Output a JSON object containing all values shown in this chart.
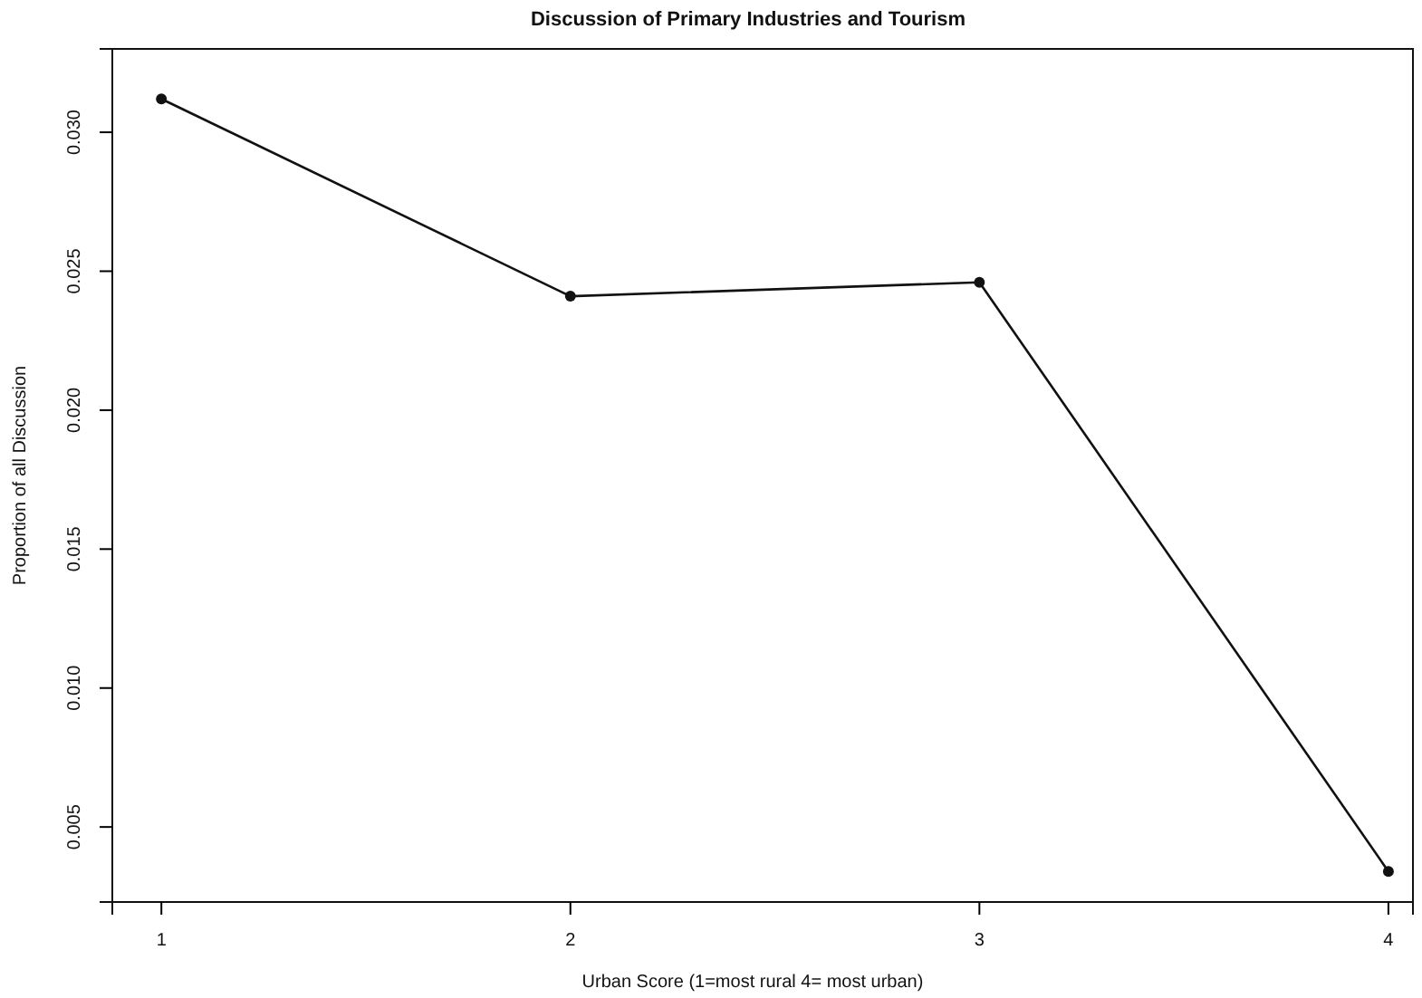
{
  "chart_data": {
    "type": "line",
    "title": "Discussion of Primary Industries and Tourism",
    "xlabel": "Urban Score (1=most rural  4= most urban)",
    "ylabel": "Proportion of all Discussion",
    "x": [
      1,
      2,
      3,
      4
    ],
    "series": [
      {
        "color": "#111111",
        "values": [
          0.0312,
          0.0241,
          0.0246,
          0.0034
        ]
      }
    ],
    "xlim": [
      0.88,
      4.06
    ],
    "xticks": [
      1,
      2,
      3,
      4
    ],
    "ylim": [
      0.0023,
      0.033
    ],
    "yticks": [
      {
        "value": 0.005,
        "label": "0.005"
      },
      {
        "value": 0.01,
        "label": "0.010"
      },
      {
        "value": 0.015,
        "label": "0.015"
      },
      {
        "value": 0.02,
        "label": "0.020"
      },
      {
        "value": 0.025,
        "label": "0.025"
      },
      {
        "value": 0.03,
        "label": "0.030"
      }
    ],
    "marker": "circle",
    "line_style": "solid",
    "grid": false
  }
}
